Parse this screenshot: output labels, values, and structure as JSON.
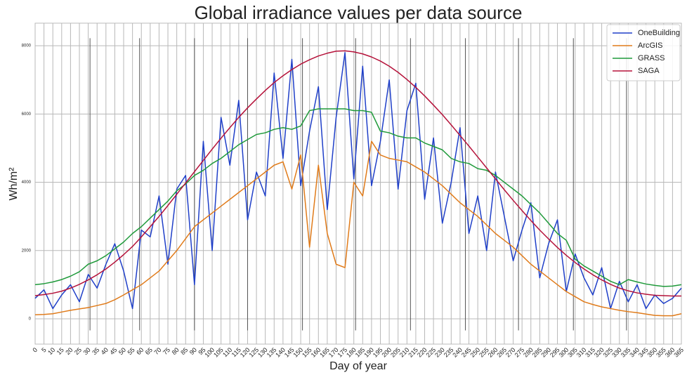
{
  "chart_data": {
    "type": "line",
    "title": "Global irradiance values per data source",
    "xlabel": "Day of year",
    "ylabel": "Wh/m²",
    "x": [
      0,
      5,
      10,
      15,
      20,
      25,
      30,
      35,
      40,
      45,
      50,
      55,
      60,
      65,
      70,
      75,
      80,
      85,
      90,
      95,
      100,
      105,
      110,
      115,
      120,
      125,
      130,
      135,
      140,
      145,
      150,
      155,
      160,
      165,
      170,
      175,
      180,
      185,
      190,
      195,
      200,
      205,
      210,
      215,
      220,
      225,
      230,
      235,
      240,
      245,
      250,
      255,
      260,
      265,
      270,
      275,
      280,
      285,
      290,
      295,
      300,
      305,
      310,
      315,
      320,
      325,
      330,
      335,
      340,
      345,
      350,
      355,
      360,
      365
    ],
    "series": [
      {
        "name": "OneBuilding",
        "color": "#1f3fc8",
        "values": [
          600,
          850,
          300,
          700,
          1000,
          500,
          1300,
          900,
          1600,
          2200,
          1400,
          300,
          2600,
          2400,
          3600,
          1600,
          3800,
          4200,
          1000,
          5200,
          2000,
          5900,
          4500,
          6400,
          2900,
          4300,
          3600,
          7200,
          4700,
          7600,
          3900,
          5500,
          6800,
          3200,
          5900,
          7800,
          4100,
          7400,
          3900,
          5200,
          7000,
          3800,
          6100,
          6900,
          3500,
          5300,
          2800,
          4000,
          5600,
          2500,
          3600,
          2000,
          4300,
          3000,
          1700,
          2600,
          3400,
          1200,
          2200,
          2900,
          800,
          1900,
          1200,
          700,
          1500,
          300,
          1100,
          500,
          1000,
          300,
          700,
          450,
          600,
          900
        ]
      },
      {
        "name": "ArcGIS",
        "color": "#e07b1a",
        "values": [
          120,
          130,
          150,
          200,
          250,
          290,
          330,
          390,
          450,
          560,
          700,
          850,
          1000,
          1200,
          1400,
          1700,
          2000,
          2350,
          2700,
          2900,
          3100,
          3300,
          3500,
          3700,
          3900,
          4100,
          4300,
          4500,
          4600,
          3800,
          4800,
          2100,
          4500,
          2500,
          1600,
          1500,
          4000,
          3600,
          5200,
          4800,
          4700,
          4650,
          4600,
          4450,
          4300,
          4100,
          3900,
          3650,
          3400,
          3200,
          3000,
          2750,
          2500,
          2300,
          2100,
          1850,
          1600,
          1400,
          1200,
          1000,
          800,
          650,
          500,
          420,
          350,
          300,
          250,
          210,
          180,
          140,
          100,
          90,
          90,
          150
        ]
      },
      {
        "name": "GRASS",
        "color": "#1f9a3a",
        "values": [
          1000,
          1030,
          1080,
          1150,
          1250,
          1380,
          1600,
          1700,
          1850,
          2050,
          2250,
          2500,
          2700,
          2950,
          3200,
          3450,
          3750,
          3950,
          4200,
          4350,
          4550,
          4700,
          4900,
          5100,
          5250,
          5400,
          5450,
          5550,
          5600,
          5550,
          5650,
          6100,
          6150,
          6150,
          6150,
          6150,
          6100,
          6100,
          6050,
          5500,
          5450,
          5350,
          5300,
          5300,
          5150,
          5050,
          4950,
          4700,
          4600,
          4550,
          4400,
          4350,
          4200,
          4000,
          3800,
          3600,
          3350,
          3100,
          2800,
          2500,
          2300,
          1750,
          1550,
          1400,
          1250,
          1100,
          1000,
          1150,
          1080,
          1020,
          980,
          950,
          960,
          1000
        ]
      },
      {
        "name": "SAGA",
        "color": "#b5123a",
        "values": [
          680,
          710,
          750,
          810,
          900,
          1010,
          1140,
          1290,
          1460,
          1660,
          1880,
          2120,
          2400,
          2700,
          3000,
          3320,
          3650,
          3980,
          4310,
          4640,
          4970,
          5290,
          5600,
          5900,
          6180,
          6440,
          6690,
          6920,
          7120,
          7300,
          7460,
          7590,
          7700,
          7780,
          7840,
          7850,
          7820,
          7760,
          7670,
          7550,
          7400,
          7220,
          7010,
          6780,
          6530,
          6260,
          5980,
          5680,
          5370,
          5060,
          4740,
          4420,
          4100,
          3780,
          3470,
          3170,
          2880,
          2600,
          2340,
          2090,
          1860,
          1650,
          1460,
          1290,
          1140,
          1010,
          900,
          820,
          760,
          720,
          690,
          680,
          670,
          670
        ]
      }
    ],
    "xlim": [
      0,
      365
    ],
    "xticks": [
      0,
      5,
      10,
      15,
      20,
      25,
      30,
      35,
      40,
      45,
      50,
      55,
      60,
      65,
      70,
      75,
      80,
      85,
      90,
      95,
      100,
      105,
      110,
      115,
      120,
      125,
      130,
      135,
      140,
      145,
      150,
      155,
      160,
      165,
      170,
      175,
      180,
      185,
      190,
      195,
      200,
      205,
      210,
      215,
      220,
      225,
      230,
      235,
      240,
      245,
      250,
      255,
      260,
      265,
      270,
      275,
      280,
      285,
      290,
      295,
      300,
      305,
      310,
      315,
      320,
      325,
      330,
      335,
      340,
      345,
      350,
      355,
      360,
      365
    ],
    "ylim": [
      -740,
      8660
    ],
    "yticks": [
      0,
      2000,
      4000,
      6000,
      8000
    ],
    "month_lines": [
      31,
      59,
      90,
      120,
      151,
      181,
      212,
      243,
      273,
      304,
      334
    ],
    "grid": true,
    "legend": "upper right"
  }
}
